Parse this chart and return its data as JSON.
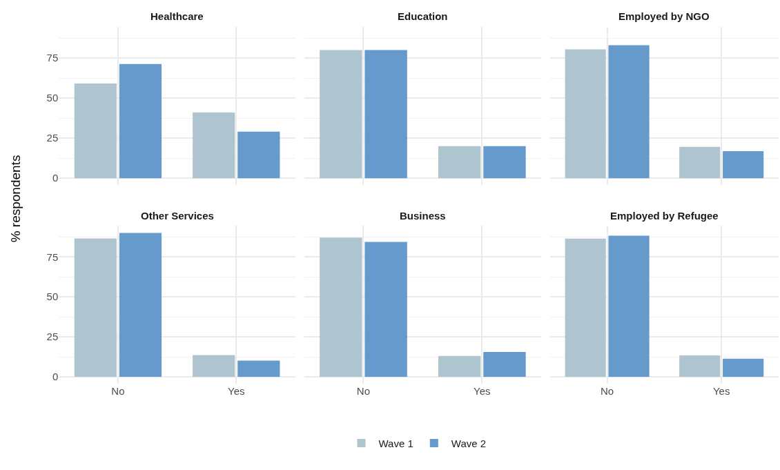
{
  "chart_data": [
    {
      "type": "bar",
      "title": "Healthcare",
      "ylabel": "% respondents",
      "categories": [
        "No",
        "Yes"
      ],
      "series": [
        {
          "name": "Wave 1",
          "color": "#aec5cf",
          "values": [
            59.1,
            41.0
          ]
        },
        {
          "name": "Wave 2",
          "color": "#6699cc",
          "values": [
            71.2,
            29.0
          ]
        }
      ],
      "ylim": [
        -4.3,
        94.5
      ],
      "yticks": [
        0,
        25,
        50,
        75
      ],
      "grid": true,
      "legend": "bottom",
      "tick_labels": "y"
    },
    {
      "type": "bar",
      "title": "Education",
      "categories": [
        "No",
        "Yes"
      ],
      "series": [
        {
          "name": "Wave 1",
          "color": "#aec5cf",
          "values": [
            80.0,
            20.0
          ]
        },
        {
          "name": "Wave 2",
          "color": "#6699cc",
          "values": [
            80.0,
            20.0
          ]
        }
      ],
      "ylim": [
        -4.3,
        94.5
      ],
      "yticks": [
        0,
        25,
        50,
        75
      ],
      "grid": true,
      "legend": "bottom",
      "tick_labels": false
    },
    {
      "type": "bar",
      "title": "Employed by NGO",
      "categories": [
        "No",
        "Yes"
      ],
      "series": [
        {
          "name": "Wave 1",
          "color": "#aec5cf",
          "values": [
            80.4,
            19.6
          ]
        },
        {
          "name": "Wave 2",
          "color": "#6699cc",
          "values": [
            83.0,
            16.9
          ]
        }
      ],
      "ylim": [
        -4.3,
        94.5
      ],
      "yticks": [
        0,
        25,
        50,
        75
      ],
      "grid": true,
      "legend": "bottom",
      "tick_labels": false
    },
    {
      "type": "bar",
      "title": "Other Services",
      "categories": [
        "No",
        "Yes"
      ],
      "series": [
        {
          "name": "Wave 1",
          "color": "#aec5cf",
          "values": [
            86.6,
            13.6
          ]
        },
        {
          "name": "Wave 2",
          "color": "#6699cc",
          "values": [
            90.0,
            10.2
          ]
        }
      ],
      "ylim": [
        -4.3,
        94.5
      ],
      "yticks": [
        0,
        25,
        50,
        75
      ],
      "grid": true,
      "legend": "bottom"
    },
    {
      "type": "bar",
      "title": "Business",
      "categories": [
        "No",
        "Yes"
      ],
      "series": [
        {
          "name": "Wave 1",
          "color": "#aec5cf",
          "values": [
            87.1,
            13.1
          ]
        },
        {
          "name": "Wave 2",
          "color": "#6699cc",
          "values": [
            84.4,
            15.6
          ]
        }
      ],
      "ylim": [
        -4.3,
        94.5
      ],
      "yticks": [
        0,
        25,
        50,
        75
      ],
      "grid": true,
      "legend": "bottom",
      "tick_labels": "x"
    },
    {
      "type": "bar",
      "title": "Employed by Refugee",
      "categories": [
        "No",
        "Yes"
      ],
      "series": [
        {
          "name": "Wave 1",
          "color": "#aec5cf",
          "values": [
            86.5,
            13.4
          ]
        },
        {
          "name": "Wave 2",
          "color": "#6699cc",
          "values": [
            88.3,
            11.3
          ]
        }
      ],
      "ylim": [
        -4.3,
        94.5
      ],
      "yticks": [
        0,
        25,
        50,
        75
      ],
      "grid": true,
      "legend": "bottom",
      "tick_labels": "x"
    }
  ]
}
